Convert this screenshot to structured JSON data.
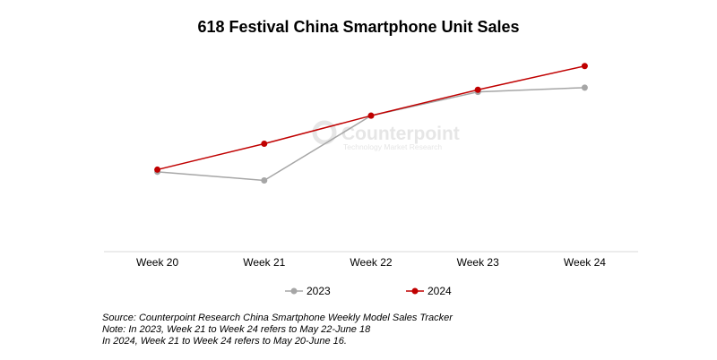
{
  "chart_data": {
    "type": "line",
    "title": "618 Festival China Smartphone Unit Sales",
    "categories": [
      "Week 20",
      "Week 21",
      "Week 22",
      "Week 23",
      "Week 24"
    ],
    "series": [
      {
        "name": "2023",
        "color": "#a6a6a6",
        "values": [
          37,
          33,
          63,
          74,
          76
        ]
      },
      {
        "name": "2024",
        "color": "#c00000",
        "values": [
          38,
          50,
          63,
          75,
          86
        ]
      }
    ],
    "ylim": [
      0,
      100
    ],
    "y_axis_visible": false,
    "grid": false,
    "legend_position": "bottom"
  },
  "watermark": {
    "brand": "Counterpoint",
    "tagline": "Technology Market Research"
  },
  "notes": [
    "Source: Counterpoint Research China Smartphone Weekly Model Sales Tracker",
    "Note: In 2023, Week 21 to Week 24 refers to May 22-June 18",
    "In 2024, Week 21 to Week 24 refers to May 20-June 16."
  ]
}
